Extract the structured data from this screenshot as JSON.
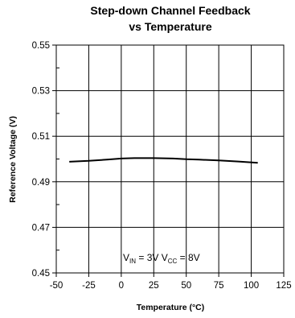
{
  "chart_data": {
    "type": "line",
    "title": "Step-down Channel Feedback",
    "subtitle": "vs Temperature",
    "xlabel": "Temperature (°C)",
    "ylabel": "Reference Voltage (V)",
    "xlim": [
      -50,
      125
    ],
    "ylim": [
      0.45,
      0.55
    ],
    "xticks": [
      "-50",
      "-25",
      "0",
      "25",
      "50",
      "75",
      "100",
      "125"
    ],
    "yticks": [
      "0.45",
      "0.47",
      "0.49",
      "0.51",
      "0.53",
      "0.55"
    ],
    "grid": true,
    "series": [
      {
        "x": [
          -40,
          -25,
          -10,
          0,
          10,
          25,
          40,
          50,
          60,
          75,
          90,
          105
        ],
        "y": [
          0.4988,
          0.4992,
          0.4998,
          0.5002,
          0.5004,
          0.5004,
          0.5002,
          0.4999,
          0.4997,
          0.4994,
          0.4989,
          0.4983
        ],
        "color": "#000000"
      }
    ],
    "annotation": {
      "v1_main": "V",
      "v1_sub": "IN",
      "v1_value": " = 3V  ",
      "v2_main": "V",
      "v2_sub": "CC",
      "v2_value": " = 8V"
    }
  }
}
